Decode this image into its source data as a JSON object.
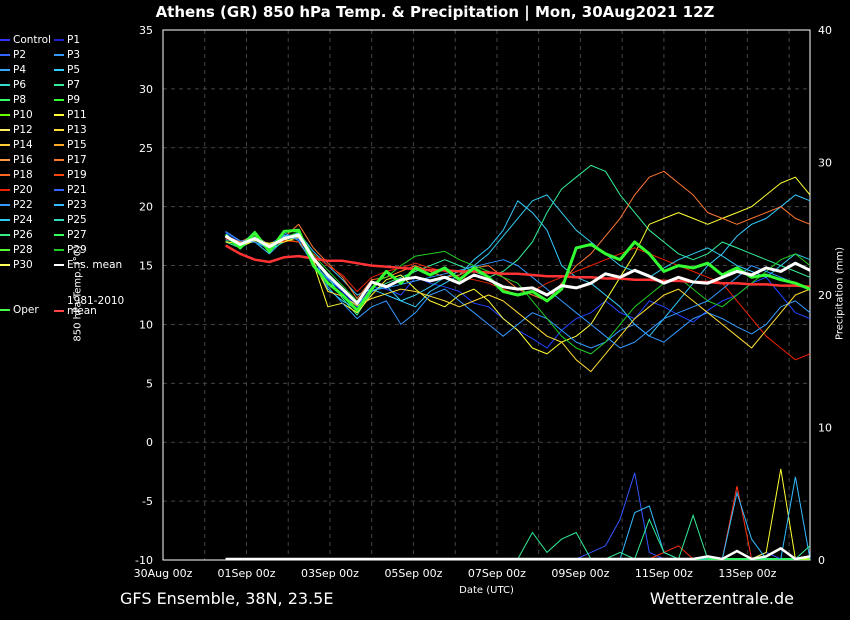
{
  "title": "Athens  (GR)  850 hPa Temp. & Precipitation | Mon, 30Aug2021 12Z",
  "footer": {
    "left": "GFS Ensemble, 38N, 23.5E",
    "right": "Wetterzentrale.de"
  },
  "legend": [
    {
      "label": "Control",
      "color": "#3333ff"
    },
    {
      "label": "P1",
      "color": "#2222cc"
    },
    {
      "label": "P2",
      "color": "#3366ff"
    },
    {
      "label": "P3",
      "color": "#3399ff"
    },
    {
      "label": "P4",
      "color": "#33aaff"
    },
    {
      "label": "P5",
      "color": "#33ccff"
    },
    {
      "label": "P6",
      "color": "#33ddcc"
    },
    {
      "label": "P7",
      "color": "#33ee99"
    },
    {
      "label": "P8",
      "color": "#33ff66"
    },
    {
      "label": "P9",
      "color": "#33ff33"
    },
    {
      "label": "P10",
      "color": "#66ff00"
    },
    {
      "label": "P11",
      "color": "#ffff33"
    },
    {
      "label": "P12",
      "color": "#ffee66"
    },
    {
      "label": "P13",
      "color": "#ffdd33"
    },
    {
      "label": "P14",
      "color": "#ffcc33"
    },
    {
      "label": "P15",
      "color": "#ffaa22"
    },
    {
      "label": "P16",
      "color": "#ff9944"
    },
    {
      "label": "P17",
      "color": "#ff7733"
    },
    {
      "label": "P18",
      "color": "#ff6622"
    },
    {
      "label": "P19",
      "color": "#ff4411"
    },
    {
      "label": "P20",
      "color": "#ee2200"
    },
    {
      "label": "P21",
      "color": "#3366ff"
    },
    {
      "label": "P22",
      "color": "#3399ff"
    },
    {
      "label": "P23",
      "color": "#33bbff"
    },
    {
      "label": "P24",
      "color": "#33ccee"
    },
    {
      "label": "P25",
      "color": "#33ddbb"
    },
    {
      "label": "P26",
      "color": "#33ee88"
    },
    {
      "label": "P27",
      "color": "#33ff55"
    },
    {
      "label": "P28",
      "color": "#55ff33"
    },
    {
      "label": "P29",
      "color": "#22cc22"
    },
    {
      "label": "P30",
      "color": "#ffff55"
    },
    {
      "label": "Ens. mean",
      "color": "#ffffff"
    },
    {
      "label": "Oper",
      "color": "#44ff44"
    },
    {
      "label": "1981-2010 mean",
      "color": "#ff4444"
    }
  ],
  "chart_data": {
    "type": "line",
    "xlabel": "Date (UTC)",
    "ylabel": "850 hPa Temp. (°C)",
    "ylabel_right": "Precipitation (mm)",
    "ylim": [
      -10,
      35
    ],
    "ylim_right": [
      0,
      40
    ],
    "yticks": [
      35,
      30,
      25,
      20,
      15,
      10,
      5,
      0,
      -5,
      -10
    ],
    "yticks_right": [
      40,
      30,
      20,
      10,
      0
    ],
    "xticks": [
      "30Aug 00z",
      "01Sep 00z",
      "03Sep 00z",
      "05Sep 00z",
      "07Sep 00z",
      "09Sep 00z",
      "11Sep 00z",
      "13Sep 00z"
    ],
    "x_start_day": 0,
    "x_end_day": 15.5,
    "grid": true,
    "series": [
      {
        "name": "Ens. mean",
        "color": "#ffffff",
        "width": 3,
        "values": [
          17.5,
          16.8,
          17.3,
          16.6,
          17.3,
          17.6,
          15.6,
          14.2,
          13.0,
          11.8,
          13.6,
          13.2,
          13.8,
          14.0,
          13.7,
          14.0,
          13.5,
          14.2,
          13.8,
          13.2,
          13.0,
          13.1,
          12.5,
          13.3,
          13.1,
          13.5,
          14.3,
          14.0,
          14.6,
          14.1,
          13.5,
          14.0,
          13.6,
          13.5,
          14.0,
          14.5,
          14.2,
          14.8,
          14.5,
          15.2,
          14.6
        ]
      },
      {
        "name": "Oper",
        "color": "#33ff33",
        "width": 3,
        "values": [
          17.6,
          16.5,
          17.8,
          16.2,
          17.9,
          18.0,
          15.0,
          13.5,
          12.5,
          11.2,
          13.0,
          14.5,
          13.5,
          14.8,
          14.2,
          14.8,
          13.8,
          14.8,
          14.0,
          12.8,
          12.5,
          12.8,
          12.0,
          13.0,
          16.5,
          16.8,
          16.0,
          15.5,
          17.0,
          16.0,
          14.5,
          15.0,
          14.8,
          15.2,
          14.2,
          14.8,
          14.0,
          14.2,
          13.8,
          13.5,
          13.0
        ]
      },
      {
        "name": "1981-2010 mean",
        "color": "#ff3333",
        "width": 2.5,
        "values": [
          16.7,
          16.0,
          15.5,
          15.3,
          15.7,
          15.8,
          15.6,
          15.4,
          15.4,
          15.2,
          15.0,
          14.9,
          14.8,
          14.7,
          14.6,
          14.6,
          14.5,
          14.5,
          14.4,
          14.3,
          14.3,
          14.2,
          14.1,
          14.1,
          14.0,
          14.0,
          13.9,
          13.9,
          13.8,
          13.8,
          13.7,
          13.7,
          13.6,
          13.6,
          13.5,
          13.5,
          13.4,
          13.4,
          13.3,
          13.3,
          13.2
        ]
      },
      {
        "name": "P1",
        "color": "#2244ff",
        "width": 1,
        "values": [
          17.8,
          17.0,
          17.5,
          16.8,
          17.6,
          17.2,
          15.0,
          13.8,
          12.8,
          11.5,
          13.2,
          13.0,
          12.5,
          14.0,
          13.5,
          13.2,
          12.8,
          11.8,
          11.5,
          10.5,
          9.5,
          8.8,
          8.0,
          9.5,
          10.5,
          11.0,
          12.0,
          11.0,
          10.5,
          12.0,
          11.5,
          10.8,
          10.2,
          11.2,
          12.0,
          12.5,
          13.5,
          14.0,
          12.5,
          11.0,
          10.5
        ]
      },
      {
        "name": "P5",
        "color": "#33ccff",
        "width": 1,
        "values": [
          17.2,
          16.9,
          17.0,
          16.0,
          17.2,
          17.8,
          16.2,
          15.0,
          13.8,
          12.5,
          13.0,
          12.5,
          12.0,
          11.5,
          12.8,
          13.5,
          14.2,
          15.5,
          16.5,
          18.0,
          20.5,
          19.5,
          18.0,
          15.0,
          14.0,
          13.5,
          12.5,
          11.5,
          10.0,
          9.0,
          10.5,
          12.0,
          13.5,
          15.0,
          16.0,
          17.5,
          18.5,
          19.0,
          20.0,
          21.0,
          20.5
        ]
      },
      {
        "name": "P7",
        "color": "#33ee99",
        "width": 1,
        "values": [
          17.0,
          16.5,
          17.2,
          16.3,
          17.0,
          17.5,
          15.5,
          14.0,
          12.2,
          10.8,
          12.8,
          13.5,
          14.0,
          14.5,
          15.0,
          15.5,
          15.0,
          14.5,
          14.0,
          14.5,
          15.5,
          17.0,
          19.5,
          21.5,
          22.5,
          23.5,
          23.0,
          21.0,
          19.5,
          18.0,
          17.0,
          16.0,
          15.5,
          16.0,
          17.0,
          16.5,
          16.0,
          15.5,
          15.0,
          14.5,
          14.0
        ]
      },
      {
        "name": "P11",
        "color": "#ffff33",
        "width": 1,
        "values": [
          17.4,
          16.6,
          17.1,
          16.9,
          17.2,
          17.0,
          15.2,
          11.5,
          11.8,
          11.0,
          12.5,
          13.8,
          14.2,
          13.0,
          12.0,
          11.5,
          12.5,
          13.0,
          12.0,
          10.5,
          9.5,
          8.0,
          7.5,
          8.5,
          9.0,
          10.0,
          12.0,
          14.0,
          16.0,
          18.5,
          19.0,
          19.5,
          19.0,
          18.5,
          19.0,
          19.5,
          20.0,
          21.0,
          22.0,
          22.5,
          21.0
        ]
      },
      {
        "name": "P17",
        "color": "#ff7733",
        "width": 1,
        "values": [
          17.5,
          17.0,
          17.6,
          16.7,
          17.4,
          18.5,
          16.5,
          15.2,
          14.0,
          12.2,
          13.8,
          14.0,
          14.5,
          15.0,
          14.5,
          14.0,
          14.2,
          14.8,
          15.0,
          14.0,
          13.0,
          12.5,
          12.0,
          13.5,
          15.0,
          16.0,
          17.5,
          19.0,
          21.0,
          22.5,
          23.0,
          22.0,
          21.0,
          19.5,
          19.0,
          18.5,
          19.0,
          19.5,
          20.0,
          19.0,
          18.5
        ]
      },
      {
        "name": "P20",
        "color": "#ee2200",
        "width": 1,
        "values": [
          17.3,
          16.8,
          17.4,
          16.5,
          17.1,
          17.0,
          16.0,
          15.0,
          14.2,
          12.8,
          14.0,
          14.5,
          14.8,
          15.2,
          14.8,
          14.5,
          14.0,
          13.8,
          13.5,
          13.0,
          12.5,
          12.8,
          13.5,
          14.0,
          14.5,
          15.0,
          15.5,
          16.0,
          16.5,
          16.0,
          15.5,
          15.0,
          14.5,
          14.0,
          13.5,
          12.0,
          10.5,
          9.0,
          8.0,
          7.0,
          7.5
        ]
      },
      {
        "name": "P22",
        "color": "#3399ff",
        "width": 1,
        "values": [
          17.9,
          17.1,
          17.0,
          16.4,
          17.6,
          17.3,
          15.8,
          13.2,
          11.8,
          10.5,
          11.5,
          12.0,
          10.0,
          11.0,
          12.5,
          13.0,
          12.0,
          11.0,
          10.0,
          9.0,
          10.0,
          11.0,
          10.5,
          9.5,
          8.5,
          8.0,
          8.5,
          9.5,
          10.0,
          9.0,
          8.5,
          9.5,
          10.5,
          11.0,
          10.5,
          9.8,
          9.2,
          10.0,
          11.5,
          12.0,
          11.0
        ]
      },
      {
        "name": "P24",
        "color": "#33ccee",
        "width": 1,
        "values": [
          17.6,
          16.7,
          17.9,
          16.1,
          17.5,
          17.7,
          15.3,
          13.0,
          12.0,
          11.3,
          12.8,
          13.3,
          12.0,
          12.5,
          13.2,
          14.0,
          14.5,
          15.0,
          16.0,
          17.5,
          19.0,
          20.5,
          21.0,
          19.5,
          18.0,
          17.0,
          16.0,
          15.0,
          14.5,
          14.0,
          14.8,
          15.5,
          16.0,
          16.5,
          15.8,
          15.0,
          14.5,
          14.0,
          15.0,
          16.0,
          15.5
        ]
      },
      {
        "name": "P29",
        "color": "#22cc22",
        "width": 1,
        "values": [
          17.1,
          16.6,
          17.5,
          16.7,
          17.3,
          17.9,
          15.9,
          14.6,
          13.3,
          12.0,
          13.5,
          14.0,
          15.0,
          15.8,
          16.0,
          16.2,
          15.5,
          15.0,
          14.5,
          14.0,
          13.5,
          12.0,
          10.5,
          9.0,
          8.0,
          7.5,
          8.5,
          10.0,
          11.5,
          12.5,
          13.5,
          14.0,
          13.0,
          12.0,
          11.5,
          12.5,
          13.5,
          14.5,
          15.5,
          16.0,
          15.0
        ]
      },
      {
        "name": "P13",
        "color": "#ffdd33",
        "width": 1,
        "values": [
          17.0,
          16.9,
          17.3,
          16.8,
          17.0,
          17.4,
          15.4,
          12.8,
          12.4,
          11.6,
          12.2,
          12.6,
          13.0,
          12.8,
          12.4,
          12.0,
          11.5,
          12.0,
          12.5,
          12.0,
          11.0,
          10.0,
          9.0,
          8.5,
          7.0,
          6.0,
          7.5,
          9.0,
          10.5,
          11.5,
          12.5,
          13.0,
          12.0,
          11.0,
          10.0,
          9.0,
          8.0,
          9.5,
          11.0,
          12.5,
          13.0
        ]
      },
      {
        "name": "P3",
        "color": "#3399ff",
        "width": 1,
        "values": [
          17.7,
          16.4,
          17.7,
          16.3,
          17.8,
          17.1,
          15.1,
          13.9,
          12.9,
          11.7,
          12.9,
          13.1,
          13.4,
          13.7,
          14.0,
          14.3,
          14.6,
          14.9,
          15.2,
          15.5,
          15.0,
          14.0,
          13.0,
          12.0,
          11.0,
          10.0,
          9.0,
          8.0,
          8.5,
          9.5,
          10.5,
          11.0,
          11.5,
          12.0,
          13.0,
          14.0,
          15.0,
          14.5,
          14.0,
          13.5,
          13.0
        ]
      }
    ],
    "precip": [
      {
        "name": "P21",
        "color": "#3355ff",
        "values": [
          0,
          0,
          0,
          0,
          0,
          0,
          0,
          0,
          0,
          0,
          0,
          0,
          0,
          0,
          0,
          0,
          0,
          0,
          0,
          0,
          0,
          0,
          0,
          0,
          0,
          0.5,
          1.0,
          3.0,
          6.5,
          0.5,
          0,
          0,
          0,
          0,
          0,
          0,
          0,
          0.5,
          0,
          0,
          0
        ]
      },
      {
        "name": "P19",
        "color": "#ff3311",
        "values": [
          0,
          0,
          0,
          0,
          0,
          0,
          0,
          0,
          0,
          0,
          0,
          0,
          0,
          0,
          0,
          0,
          0,
          0,
          0,
          0,
          0,
          0,
          0,
          0,
          0,
          0,
          0,
          0,
          0,
          0,
          0.5,
          1.0,
          0,
          0,
          0,
          5.5,
          0,
          0,
          0,
          0,
          0
        ]
      },
      {
        "name": "P11",
        "color": "#ffff33",
        "values": [
          0,
          0,
          0,
          0,
          0,
          0,
          0,
          0,
          0,
          0,
          0,
          0,
          0,
          0,
          0,
          0,
          0,
          0,
          0,
          0,
          0,
          0,
          0,
          0,
          0,
          0,
          0,
          0,
          0,
          0,
          0,
          0,
          0,
          0,
          0,
          0,
          0,
          0.5,
          6.8,
          0,
          0
        ]
      },
      {
        "name": "P23",
        "color": "#33bbff",
        "values": [
          0,
          0,
          0,
          0,
          0,
          0,
          0,
          0,
          0,
          0,
          0,
          0,
          0,
          0,
          0,
          0,
          0,
          0,
          0,
          0,
          0,
          0,
          0,
          0,
          0,
          0,
          0,
          0,
          3.5,
          4.0,
          0.5,
          0,
          0,
          0,
          0,
          5.0,
          1.5,
          0,
          0,
          6.2,
          0
        ]
      },
      {
        "name": "P7",
        "color": "#33ee99",
        "values": [
          0,
          0,
          0,
          0,
          0,
          0,
          0,
          0,
          0,
          0,
          0,
          0,
          0,
          0,
          0,
          0,
          0,
          0,
          0,
          0,
          0,
          2.0,
          0.5,
          1.5,
          2.0,
          0,
          0,
          0.5,
          0,
          3.0,
          0.5,
          0,
          3.3,
          0,
          0,
          0,
          0,
          0,
          0,
          0,
          1.0
        ]
      },
      {
        "name": "Ens. mean",
        "color": "#ffffff",
        "values": [
          0,
          0,
          0,
          0,
          0,
          0,
          0,
          0,
          0,
          0,
          0,
          0,
          0,
          0,
          0,
          0,
          0,
          0,
          0,
          0,
          0,
          0,
          0,
          0,
          0,
          0,
          0,
          0,
          0,
          0,
          0,
          0,
          0,
          0.2,
          0,
          0.6,
          0,
          0.2,
          0.8,
          0,
          0.2
        ]
      }
    ]
  }
}
